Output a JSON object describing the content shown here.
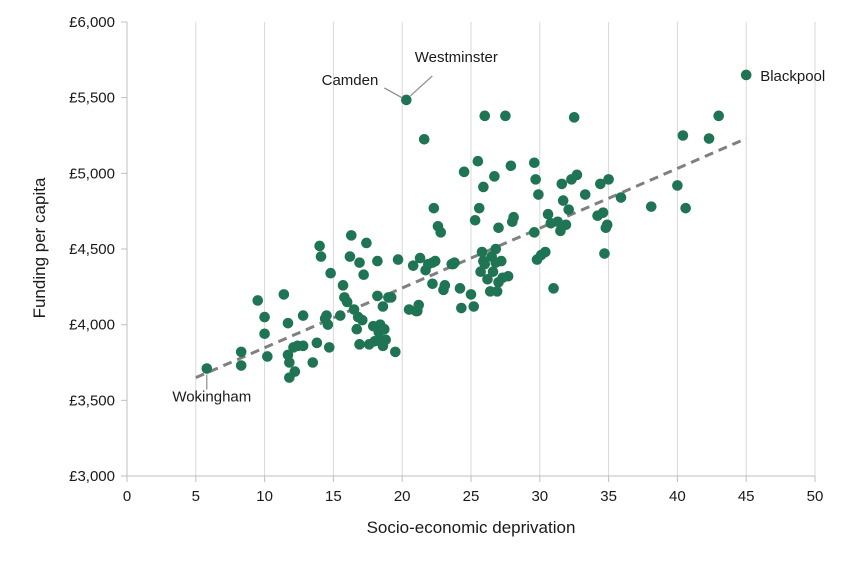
{
  "chart_data": {
    "type": "scatter",
    "xlabel": "Socio-economic deprivation",
    "ylabel": "Funding per capita",
    "xlim": [
      0,
      50
    ],
    "ylim": [
      3000,
      6000
    ],
    "x_ticks": [
      0,
      5,
      10,
      15,
      20,
      25,
      30,
      35,
      40,
      45,
      50
    ],
    "y_ticks": [
      3000,
      3500,
      4000,
      4500,
      5000,
      5500,
      6000
    ],
    "y_tick_labels": [
      "£3,000",
      "£3,500",
      "£4,000",
      "£4,500",
      "£5,000",
      "£5,500",
      "£6,000"
    ],
    "grid": {
      "vertical": true,
      "horizontal": false
    },
    "colors": {
      "points": "#1f7454",
      "trendline": "#808080",
      "grid": "#d9d9d9",
      "axis": "#bfbfbf"
    },
    "trendline": {
      "style": "dashed",
      "from": [
        5,
        3650
      ],
      "to": [
        45,
        5230
      ]
    },
    "annotations": [
      {
        "label": "Blackpool",
        "x": 45.0,
        "y": 5650
      },
      {
        "label": "Westminster",
        "x": 20.3,
        "y": 5485
      },
      {
        "label": "Camden",
        "x": 20.3,
        "y": 5485
      },
      {
        "label": "Wokingham",
        "x": 5.8,
        "y": 3710
      }
    ],
    "points": [
      [
        5.8,
        3710
      ],
      [
        8.3,
        3820
      ],
      [
        8.3,
        3730
      ],
      [
        9.5,
        4160
      ],
      [
        10.0,
        3940
      ],
      [
        10.0,
        4050
      ],
      [
        10.2,
        3790
      ],
      [
        11.4,
        4200
      ],
      [
        11.7,
        4010
      ],
      [
        11.7,
        3800
      ],
      [
        11.8,
        3650
      ],
      [
        11.8,
        3750
      ],
      [
        12.1,
        3850
      ],
      [
        12.2,
        3690
      ],
      [
        12.4,
        3860
      ],
      [
        12.8,
        4060
      ],
      [
        12.8,
        3860
      ],
      [
        13.5,
        3750
      ],
      [
        13.8,
        3880
      ],
      [
        14.0,
        4520
      ],
      [
        14.1,
        4450
      ],
      [
        14.4,
        4040
      ],
      [
        14.5,
        4060
      ],
      [
        14.6,
        4000
      ],
      [
        14.7,
        3850
      ],
      [
        14.8,
        4340
      ],
      [
        15.5,
        4060
      ],
      [
        15.7,
        4260
      ],
      [
        15.8,
        4180
      ],
      [
        16.0,
        4150
      ],
      [
        16.2,
        4450
      ],
      [
        16.3,
        4590
      ],
      [
        16.5,
        4100
      ],
      [
        16.7,
        3970
      ],
      [
        16.8,
        4050
      ],
      [
        16.9,
        4410
      ],
      [
        16.9,
        3870
      ],
      [
        17.1,
        4030
      ],
      [
        17.2,
        4330
      ],
      [
        17.4,
        4540
      ],
      [
        17.6,
        3870
      ],
      [
        17.9,
        3990
      ],
      [
        18.0,
        3890
      ],
      [
        18.2,
        4190
      ],
      [
        18.2,
        4420
      ],
      [
        18.3,
        3950
      ],
      [
        18.4,
        4000
      ],
      [
        18.5,
        3890
      ],
      [
        18.6,
        4120
      ],
      [
        18.6,
        3860
      ],
      [
        18.7,
        3970
      ],
      [
        18.8,
        3900
      ],
      [
        19.0,
        4180
      ],
      [
        19.2,
        4180
      ],
      [
        19.5,
        3820
      ],
      [
        19.7,
        4430
      ],
      [
        20.3,
        5485
      ],
      [
        20.5,
        4100
      ],
      [
        20.8,
        4390
      ],
      [
        21.0,
        4090
      ],
      [
        21.1,
        4090
      ],
      [
        21.2,
        4130
      ],
      [
        21.3,
        4440
      ],
      [
        21.6,
        5225
      ],
      [
        21.7,
        4360
      ],
      [
        21.9,
        4400
      ],
      [
        22.2,
        4410
      ],
      [
        22.2,
        4270
      ],
      [
        22.3,
        4770
      ],
      [
        22.4,
        4420
      ],
      [
        22.6,
        4650
      ],
      [
        22.8,
        4610
      ],
      [
        23.0,
        4230
      ],
      [
        23.1,
        4260
      ],
      [
        23.6,
        4400
      ],
      [
        23.7,
        4400
      ],
      [
        23.8,
        4410
      ],
      [
        24.2,
        4240
      ],
      [
        24.3,
        4110
      ],
      [
        24.5,
        5010
      ],
      [
        25.0,
        4200
      ],
      [
        25.2,
        4120
      ],
      [
        25.3,
        4690
      ],
      [
        25.5,
        5080
      ],
      [
        25.6,
        4770
      ],
      [
        25.7,
        4350
      ],
      [
        25.8,
        4480
      ],
      [
        25.9,
        4910
      ],
      [
        25.9,
        4420
      ],
      [
        26.0,
        4400
      ],
      [
        26.0,
        5380
      ],
      [
        26.2,
        4300
      ],
      [
        26.4,
        4220
      ],
      [
        26.5,
        4450
      ],
      [
        26.6,
        4350
      ],
      [
        26.7,
        4980
      ],
      [
        26.8,
        4410
      ],
      [
        26.8,
        4500
      ],
      [
        26.9,
        4220
      ],
      [
        27.0,
        4640
      ],
      [
        27.0,
        4280
      ],
      [
        27.2,
        4420
      ],
      [
        27.3,
        4310
      ],
      [
        27.5,
        5380
      ],
      [
        27.7,
        4320
      ],
      [
        27.9,
        5050
      ],
      [
        28.0,
        4680
      ],
      [
        28.1,
        4710
      ],
      [
        29.6,
        5070
      ],
      [
        29.6,
        4610
      ],
      [
        29.7,
        4960
      ],
      [
        29.8,
        4430
      ],
      [
        29.9,
        4860
      ],
      [
        30.1,
        4460
      ],
      [
        30.4,
        4480
      ],
      [
        30.6,
        4730
      ],
      [
        30.8,
        4670
      ],
      [
        31.0,
        4240
      ],
      [
        31.3,
        4680
      ],
      [
        31.5,
        4620
      ],
      [
        31.6,
        4930
      ],
      [
        31.7,
        4820
      ],
      [
        31.9,
        4660
      ],
      [
        32.1,
        4760
      ],
      [
        32.3,
        4960
      ],
      [
        32.5,
        5370
      ],
      [
        32.7,
        4990
      ],
      [
        33.3,
        4860
      ],
      [
        34.2,
        4720
      ],
      [
        34.4,
        4930
      ],
      [
        34.6,
        4740
      ],
      [
        34.7,
        4470
      ],
      [
        34.8,
        4640
      ],
      [
        34.9,
        4660
      ],
      [
        35.0,
        4960
      ],
      [
        35.9,
        4840
      ],
      [
        38.1,
        4780
      ],
      [
        40.0,
        4920
      ],
      [
        40.4,
        5250
      ],
      [
        40.6,
        4770
      ],
      [
        42.3,
        5230
      ],
      [
        43.0,
        5380
      ],
      [
        45.0,
        5650
      ]
    ]
  }
}
